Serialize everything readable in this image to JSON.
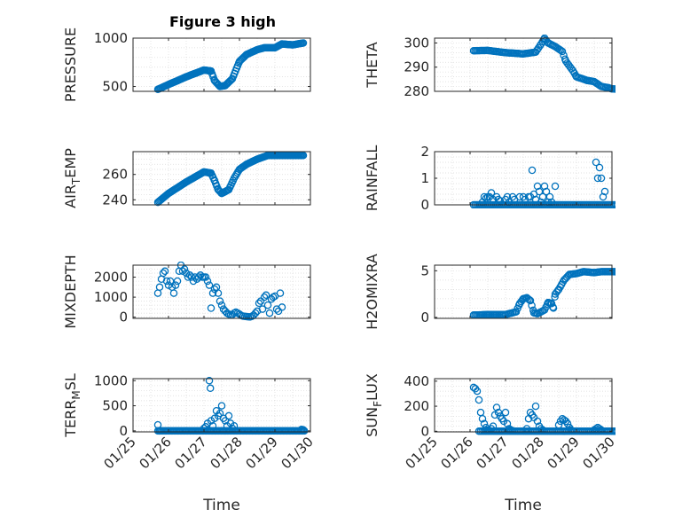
{
  "title": "Figure 3 high",
  "marker_color": "#0072BD",
  "x_tick_labels": [
    "01/25",
    "01/26",
    "01/27",
    "01/28",
    "01/29",
    "01/30"
  ],
  "xlabel": "Time",
  "chart_data": [
    {
      "type": "scatter",
      "ylabel": "PRESSURE",
      "xlim": [
        0,
        5
      ],
      "ylim": [
        450,
        1000
      ],
      "yticks": [
        500,
        1000
      ],
      "grid": true,
      "anchors": [
        [
          0.7,
          470
        ],
        [
          1.0,
          520
        ],
        [
          1.5,
          600
        ],
        [
          2.0,
          670
        ],
        [
          2.2,
          660
        ],
        [
          2.3,
          560
        ],
        [
          2.45,
          500
        ],
        [
          2.6,
          510
        ],
        [
          2.8,
          580
        ],
        [
          3.0,
          760
        ],
        [
          3.2,
          830
        ],
        [
          3.5,
          880
        ],
        [
          3.7,
          900
        ],
        [
          4.0,
          900
        ],
        [
          4.2,
          940
        ],
        [
          4.5,
          930
        ],
        [
          4.8,
          950
        ]
      ],
      "step": 0.03
    },
    {
      "type": "scatter",
      "ylabel": "THETA",
      "xlim": [
        0,
        5
      ],
      "ylim": [
        280,
        302
      ],
      "yticks": [
        280,
        290,
        300
      ],
      "grid": true,
      "anchors": [
        [
          1.1,
          296.8
        ],
        [
          1.5,
          296.9
        ],
        [
          2.0,
          296
        ],
        [
          2.5,
          295.5
        ],
        [
          2.85,
          296.2
        ],
        [
          3.0,
          299.5
        ],
        [
          3.1,
          302
        ],
        [
          3.2,
          300
        ],
        [
          3.4,
          298.5
        ],
        [
          3.6,
          296.5
        ],
        [
          3.7,
          292.5
        ],
        [
          3.9,
          288.5
        ],
        [
          4.0,
          286
        ],
        [
          4.3,
          284.5
        ],
        [
          4.5,
          284
        ],
        [
          4.7,
          282
        ],
        [
          4.9,
          281.5
        ],
        [
          5.0,
          281
        ],
        [
          5.4,
          280.8
        ]
      ],
      "step": 0.04
    },
    {
      "type": "scatter",
      "ylabel": "AIR_TEMP",
      "ylabel_parts": {
        "pre": "AIR",
        "sub": "T",
        "post": "EMP"
      },
      "xlim": [
        0,
        5
      ],
      "ylim": [
        236,
        278
      ],
      "yticks": [
        240,
        260
      ],
      "grid": true,
      "anchors": [
        [
          0.7,
          238
        ],
        [
          1.0,
          245
        ],
        [
          1.5,
          254
        ],
        [
          2.0,
          262
        ],
        [
          2.2,
          261
        ],
        [
          2.3,
          255
        ],
        [
          2.4,
          248
        ],
        [
          2.5,
          245
        ],
        [
          2.7,
          248
        ],
        [
          2.85,
          257
        ],
        [
          3.0,
          264
        ],
        [
          3.2,
          268
        ],
        [
          3.5,
          272
        ],
        [
          3.8,
          275
        ],
        [
          4.0,
          275
        ],
        [
          4.5,
          275
        ],
        [
          4.8,
          275
        ]
      ],
      "step": 0.03
    },
    {
      "type": "scatter",
      "ylabel": "RAINFALL",
      "xlim": [
        0,
        5
      ],
      "ylim": [
        0,
        2
      ],
      "yticks": [
        0,
        1,
        2
      ],
      "grid": true,
      "baseline": {
        "from": 1.1,
        "to": 5.6,
        "step": 0.045,
        "value": 0
      },
      "points": [
        [
          1.35,
          0.1
        ],
        [
          1.4,
          0.3
        ],
        [
          1.45,
          0.25
        ],
        [
          1.5,
          0.3
        ],
        [
          1.55,
          0.3
        ],
        [
          1.6,
          0.45
        ],
        [
          1.65,
          0.2
        ],
        [
          1.75,
          0.3
        ],
        [
          1.8,
          0.2
        ],
        [
          1.85,
          0.15
        ],
        [
          2.0,
          0.2
        ],
        [
          2.05,
          0.3
        ],
        [
          2.1,
          0.1
        ],
        [
          2.2,
          0.3
        ],
        [
          2.25,
          0.2
        ],
        [
          2.4,
          0.3
        ],
        [
          2.5,
          0.3
        ],
        [
          2.55,
          0.2
        ],
        [
          2.65,
          0.3
        ],
        [
          2.7,
          0.3
        ],
        [
          2.75,
          1.3
        ],
        [
          2.8,
          0.4
        ],
        [
          2.85,
          0.2
        ],
        [
          2.9,
          0.7
        ],
        [
          2.95,
          0.5
        ],
        [
          3.0,
          0.1
        ],
        [
          3.05,
          0.3
        ],
        [
          3.1,
          0.7
        ],
        [
          3.15,
          0.5
        ],
        [
          3.2,
          0.1
        ],
        [
          3.25,
          0.3
        ],
        [
          3.3,
          0.1
        ],
        [
          3.4,
          0.7
        ],
        [
          4.55,
          1.6
        ],
        [
          4.6,
          1.0
        ],
        [
          4.65,
          1.4
        ],
        [
          4.7,
          1.0
        ],
        [
          4.75,
          0.3
        ],
        [
          4.8,
          0.5
        ]
      ]
    },
    {
      "type": "scatter",
      "ylabel": "MIXDEPTH",
      "xlim": [
        0,
        5
      ],
      "ylim": [
        -60,
        2600
      ],
      "yticks": [
        0,
        1000,
        2000
      ],
      "grid": true,
      "points": [
        [
          0.7,
          1200
        ],
        [
          0.75,
          1500
        ],
        [
          0.8,
          1900
        ],
        [
          0.85,
          2200
        ],
        [
          0.9,
          2300
        ],
        [
          0.95,
          1800
        ],
        [
          1.0,
          1600
        ],
        [
          1.05,
          1800
        ],
        [
          1.1,
          1500
        ],
        [
          1.15,
          1200
        ],
        [
          1.2,
          1600
        ],
        [
          1.25,
          1800
        ],
        [
          1.3,
          2300
        ],
        [
          1.35,
          2600
        ],
        [
          1.4,
          2300
        ],
        [
          1.45,
          2400
        ],
        [
          1.5,
          2200
        ],
        [
          1.55,
          2000
        ],
        [
          1.6,
          2100
        ],
        [
          1.65,
          2000
        ],
        [
          1.7,
          1800
        ],
        [
          1.75,
          2000
        ],
        [
          1.8,
          1900
        ],
        [
          1.85,
          2000
        ],
        [
          1.9,
          2100
        ],
        [
          1.95,
          2000
        ],
        [
          2.0,
          2000
        ],
        [
          2.05,
          2000
        ],
        [
          2.1,
          1800
        ],
        [
          2.15,
          1600
        ],
        [
          2.2,
          450
        ],
        [
          2.25,
          1200
        ],
        [
          2.3,
          1400
        ],
        [
          2.35,
          1500
        ],
        [
          2.4,
          1200
        ],
        [
          2.45,
          800
        ],
        [
          2.5,
          600
        ],
        [
          2.55,
          400
        ],
        [
          2.6,
          300
        ],
        [
          2.65,
          200
        ],
        [
          2.7,
          150
        ],
        [
          2.75,
          100
        ],
        [
          2.8,
          120
        ],
        [
          2.85,
          200
        ],
        [
          2.9,
          250
        ],
        [
          2.95,
          200
        ],
        [
          3.0,
          150
        ],
        [
          3.05,
          80
        ],
        [
          3.1,
          50
        ],
        [
          3.15,
          40
        ],
        [
          3.2,
          30
        ],
        [
          3.25,
          20
        ],
        [
          3.3,
          10
        ],
        [
          3.35,
          40
        ],
        [
          3.4,
          100
        ],
        [
          3.45,
          200
        ],
        [
          3.5,
          300
        ],
        [
          3.55,
          700
        ],
        [
          3.6,
          800
        ],
        [
          3.65,
          400
        ],
        [
          3.7,
          1000
        ],
        [
          3.75,
          1100
        ],
        [
          3.8,
          600
        ],
        [
          3.85,
          200
        ],
        [
          3.9,
          900
        ],
        [
          3.95,
          1000
        ],
        [
          4.0,
          1050
        ],
        [
          4.05,
          400
        ],
        [
          4.1,
          300
        ],
        [
          4.15,
          1200
        ],
        [
          4.2,
          500
        ]
      ]
    },
    {
      "type": "scatter",
      "ylabel": "H2OMIXRA",
      "xlim": [
        0,
        5
      ],
      "ylim": [
        -0.1,
        5.6
      ],
      "yticks": [
        0,
        5
      ],
      "grid": true,
      "anchors": [
        [
          1.1,
          0.25
        ],
        [
          1.5,
          0.3
        ],
        [
          2.0,
          0.3
        ],
        [
          2.3,
          0.6
        ],
        [
          2.4,
          1.5
        ],
        [
          2.5,
          2.0
        ],
        [
          2.6,
          2.1
        ],
        [
          2.7,
          1.8
        ],
        [
          2.8,
          0.5
        ],
        [
          2.9,
          0.4
        ],
        [
          3.1,
          0.8
        ],
        [
          3.2,
          1.6
        ],
        [
          3.3,
          1.5
        ],
        [
          3.35,
          1.0
        ],
        [
          3.4,
          2.5
        ],
        [
          3.5,
          3.0
        ],
        [
          3.65,
          4.0
        ],
        [
          3.8,
          4.6
        ],
        [
          4.0,
          4.7
        ],
        [
          4.2,
          4.9
        ],
        [
          4.5,
          4.8
        ],
        [
          4.7,
          4.9
        ],
        [
          5.0,
          4.9
        ],
        [
          5.4,
          4.9
        ]
      ],
      "step": 0.04
    },
    {
      "type": "scatter",
      "ylabel": "TERR_MSL",
      "ylabel_parts": {
        "pre": "TERR",
        "sub": "M",
        "post": "SL"
      },
      "xlim": [
        0,
        5
      ],
      "ylim": [
        -20,
        1040
      ],
      "yticks": [
        0,
        500,
        1000
      ],
      "grid": true,
      "baseline": {
        "from": 0.7,
        "to": 4.85,
        "step": 0.035,
        "value": 0
      },
      "points": [
        [
          0.7,
          120
        ],
        [
          0.75,
          0
        ],
        [
          2.0,
          50
        ],
        [
          2.05,
          80
        ],
        [
          2.1,
          150
        ],
        [
          2.15,
          1000
        ],
        [
          2.18,
          850
        ],
        [
          2.2,
          200
        ],
        [
          2.25,
          100
        ],
        [
          2.3,
          250
        ],
        [
          2.35,
          400
        ],
        [
          2.4,
          300
        ],
        [
          2.45,
          350
        ],
        [
          2.5,
          500
        ],
        [
          2.55,
          250
        ],
        [
          2.6,
          200
        ],
        [
          2.65,
          100
        ],
        [
          2.7,
          300
        ],
        [
          2.75,
          150
        ],
        [
          2.8,
          50
        ],
        [
          2.85,
          100
        ],
        [
          4.75,
          30
        ],
        [
          4.8,
          20
        ]
      ]
    },
    {
      "type": "scatter",
      "ylabel": "SUN_FLUX",
      "ylabel_parts": {
        "pre": "SUN",
        "sub": "F",
        "post": "LUX"
      },
      "xlim": [
        0,
        5
      ],
      "ylim": [
        -5,
        420
      ],
      "yticks": [
        0,
        200,
        400
      ],
      "grid": true,
      "baseline": {
        "from": 1.25,
        "to": 5.5,
        "step": 0.045,
        "value": 0
      },
      "points": [
        [
          1.1,
          350
        ],
        [
          1.15,
          340
        ],
        [
          1.2,
          320
        ],
        [
          1.25,
          250
        ],
        [
          1.3,
          150
        ],
        [
          1.35,
          100
        ],
        [
          1.4,
          60
        ],
        [
          1.45,
          30
        ],
        [
          1.5,
          10
        ],
        [
          1.55,
          5
        ],
        [
          1.6,
          20
        ],
        [
          1.65,
          40
        ],
        [
          1.7,
          130
        ],
        [
          1.75,
          190
        ],
        [
          1.8,
          150
        ],
        [
          1.85,
          120
        ],
        [
          1.9,
          100
        ],
        [
          1.95,
          80
        ],
        [
          2.0,
          150
        ],
        [
          2.05,
          60
        ],
        [
          2.1,
          20
        ],
        [
          2.15,
          10
        ],
        [
          2.2,
          5
        ],
        [
          2.6,
          20
        ],
        [
          2.65,
          100
        ],
        [
          2.7,
          150
        ],
        [
          2.75,
          130
        ],
        [
          2.8,
          110
        ],
        [
          2.85,
          200
        ],
        [
          2.9,
          80
        ],
        [
          2.95,
          40
        ],
        [
          3.0,
          20
        ],
        [
          3.05,
          10
        ],
        [
          3.5,
          50
        ],
        [
          3.55,
          80
        ],
        [
          3.6,
          100
        ],
        [
          3.65,
          90
        ],
        [
          3.7,
          80
        ],
        [
          3.75,
          60
        ],
        [
          3.8,
          30
        ],
        [
          3.85,
          10
        ],
        [
          4.5,
          10
        ],
        [
          4.55,
          20
        ],
        [
          4.6,
          30
        ],
        [
          4.65,
          20
        ],
        [
          4.7,
          10
        ]
      ]
    }
  ]
}
